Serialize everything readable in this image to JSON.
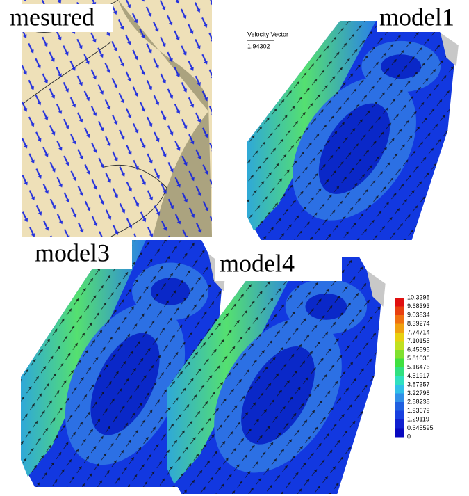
{
  "panels": [
    {
      "label": "mesured"
    },
    {
      "label": "model1"
    },
    {
      "label": "model3"
    },
    {
      "label": "model4"
    }
  ],
  "velocity_vector": {
    "label": "Velocity Vector",
    "value": "1.94302"
  },
  "colorbar": {
    "labels": [
      "10.3295",
      "9.68393",
      "9.03834",
      "8.39274",
      "7.74714",
      "7.10155",
      "6.45595",
      "5.81036",
      "5.16476",
      "4.51917",
      "3.87357",
      "3.22798",
      "2.58238",
      "1.93679",
      "1.29119",
      "0.645595",
      "0"
    ]
  }
}
